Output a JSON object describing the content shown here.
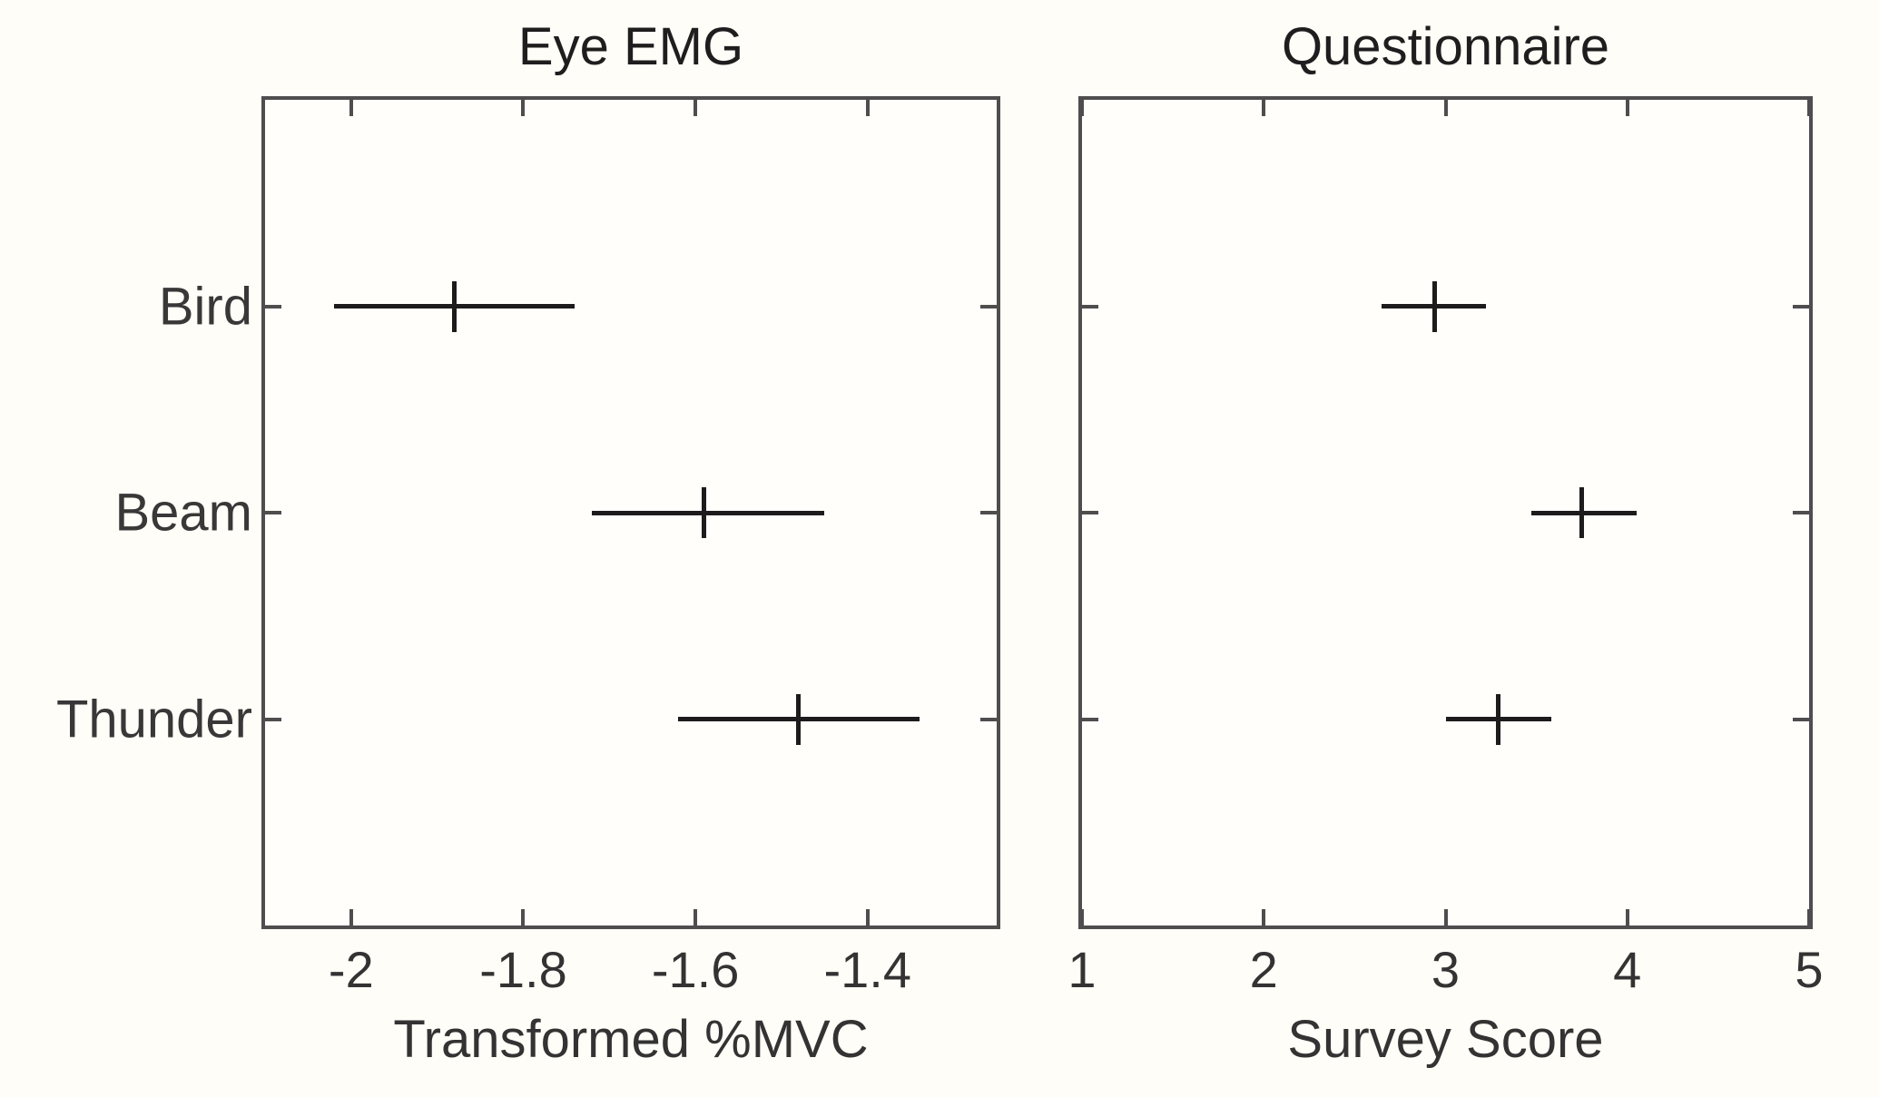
{
  "figure": {
    "colors": {
      "background": "#fffdf7",
      "axis": "#4f4d4e",
      "text": "#353233",
      "marker": "#1d1b1c"
    }
  },
  "chart_data": [
    {
      "type": "scatter",
      "subtype": "horizontal-error-bars-with-mean-tick",
      "title": "Eye EMG",
      "xlabel": "Transformed %MVC",
      "categories": [
        "Bird",
        "Beam",
        "Thunder"
      ],
      "category_positions": [
        3,
        2,
        1
      ],
      "show_category_labels": true,
      "ylim": [
        0,
        4
      ],
      "xlim": [
        -2.1,
        -1.25
      ],
      "x_ticks": [
        -2,
        -1.8,
        -1.6,
        -1.4
      ],
      "x_tick_labels": [
        "-2",
        "-1.8",
        "-1.6",
        "-1.4"
      ],
      "grid": false,
      "box": true,
      "points": [
        {
          "category": "Bird",
          "mean": -1.88,
          "ci_low": -2.02,
          "ci_high": -1.74
        },
        {
          "category": "Beam",
          "mean": -1.59,
          "ci_low": -1.72,
          "ci_high": -1.45
        },
        {
          "category": "Thunder",
          "mean": -1.48,
          "ci_low": -1.62,
          "ci_high": -1.34
        }
      ]
    },
    {
      "type": "scatter",
      "subtype": "horizontal-error-bars-with-mean-tick",
      "title": "Questionnaire",
      "xlabel": "Survey Score",
      "categories": [
        "Bird",
        "Beam",
        "Thunder"
      ],
      "category_positions": [
        3,
        2,
        1
      ],
      "show_category_labels": false,
      "ylim": [
        0,
        4
      ],
      "xlim": [
        1,
        5
      ],
      "x_ticks": [
        1,
        2,
        3,
        4,
        5
      ],
      "x_tick_labels": [
        "1",
        "2",
        "3",
        "4",
        "5"
      ],
      "grid": false,
      "box": true,
      "points": [
        {
          "category": "Bird",
          "mean": 2.94,
          "ci_low": 2.65,
          "ci_high": 3.22
        },
        {
          "category": "Beam",
          "mean": 3.75,
          "ci_low": 3.47,
          "ci_high": 4.05
        },
        {
          "category": "Thunder",
          "mean": 3.29,
          "ci_low": 3.0,
          "ci_high": 3.58
        }
      ]
    }
  ]
}
